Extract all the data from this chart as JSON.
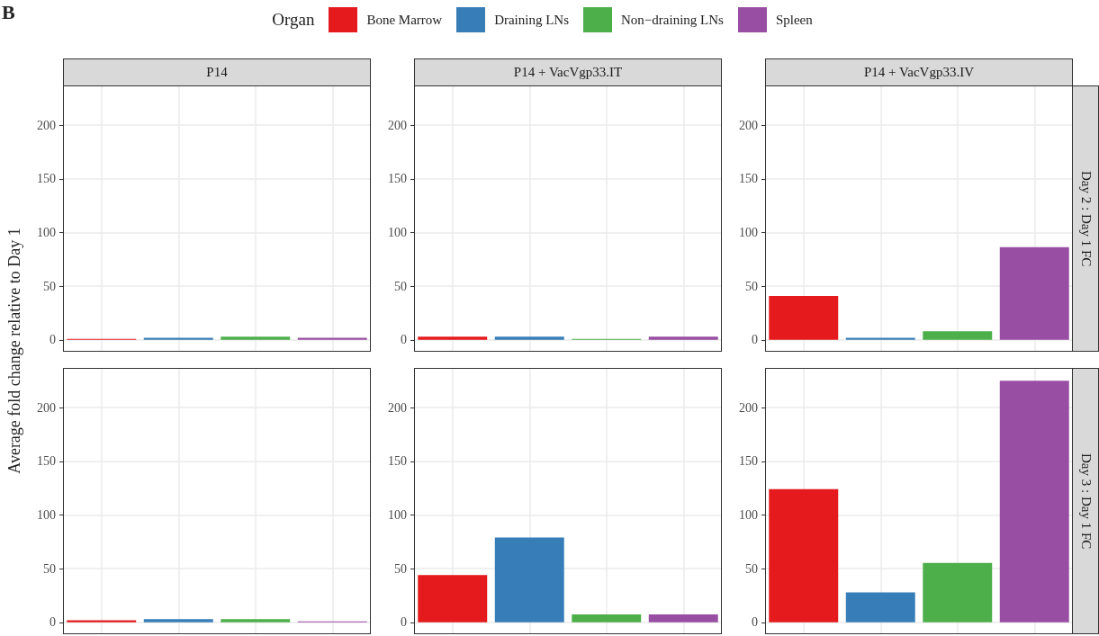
{
  "chart_data": [
    {
      "type": "bar",
      "title": "P14",
      "ylabel": "Average fold change relative to Day 1",
      "legend_title": "Organ",
      "legend": "top",
      "annotations": [
        "B"
      ],
      "categories": [
        null,
        null,
        null,
        null
      ],
      "series": [
        {
          "name": "Bone Marrow",
          "color": "#e41a1c",
          "values": [
            1,
            null,
            null,
            null
          ]
        },
        {
          "name": "Draining LNs",
          "color": "#377eb8",
          "values": [
            null,
            2,
            null,
            null
          ]
        },
        {
          "name": "Non−draining LNs",
          "color": "#4daf4a",
          "values": [
            null,
            null,
            3,
            null
          ]
        },
        {
          "name": "Spleen",
          "color": "#984ea3",
          "values": [
            null,
            null,
            null,
            2
          ]
        }
      ],
      "ylim": [
        -11,
        237
      ],
      "yticks": [
        0,
        50,
        100,
        150,
        200
      ],
      "grid": true,
      "tick_labels": "y"
    },
    {
      "type": "bar",
      "title": "P14 + VacVgp33.IT",
      "categories": [
        null,
        null,
        null,
        null
      ],
      "values": [
        3,
        3,
        1,
        3
      ],
      "colors": [
        "#e41a1c",
        "#377eb8",
        "#4daf4a",
        "#984ea3"
      ],
      "ylim": [
        -11,
        237
      ],
      "yticks": [
        0,
        50,
        100,
        150,
        200
      ],
      "grid": true,
      "tick_labels": "y"
    },
    {
      "type": "bar",
      "title": "P14 + VacVgp33.IV",
      "subtitle": "Day 2 : Day 1 FC",
      "categories": [
        null,
        null,
        null,
        null
      ],
      "values": [
        41,
        2,
        8,
        86.5
      ],
      "colors": [
        "#e41a1c",
        "#377eb8",
        "#4daf4a",
        "#984ea3"
      ],
      "ylim": [
        -11,
        237
      ],
      "yticks": [
        0,
        50,
        100,
        150,
        200
      ],
      "grid": true,
      "tick_labels": "y"
    },
    {
      "type": "bar",
      "categories": [
        null,
        null,
        null,
        null
      ],
      "values": [
        2,
        3,
        3,
        1
      ],
      "colors": [
        "#e41a1c",
        "#377eb8",
        "#4daf4a",
        "#984ea3"
      ],
      "ylim": [
        -11,
        237
      ],
      "yticks": [
        0,
        50,
        100,
        150,
        200
      ],
      "grid": true,
      "tick_labels": "y"
    },
    {
      "type": "bar",
      "categories": [
        null,
        null,
        null,
        null
      ],
      "values": [
        44,
        79,
        7.5,
        7.5
      ],
      "colors": [
        "#e41a1c",
        "#377eb8",
        "#4daf4a",
        "#984ea3"
      ],
      "ylim": [
        -11,
        237
      ],
      "yticks": [
        0,
        50,
        100,
        150,
        200
      ],
      "grid": true,
      "tick_labels": "y"
    },
    {
      "type": "bar",
      "subtitle": "Day 3 : Day 1 FC",
      "categories": [
        null,
        null,
        null,
        null
      ],
      "values": [
        124,
        28,
        55.5,
        225
      ],
      "colors": [
        "#e41a1c",
        "#377eb8",
        "#4daf4a",
        "#984ea3"
      ],
      "ylim": [
        -11,
        237
      ],
      "yticks": [
        0,
        50,
        100,
        150,
        200
      ],
      "grid": true,
      "tick_labels": "y"
    }
  ]
}
